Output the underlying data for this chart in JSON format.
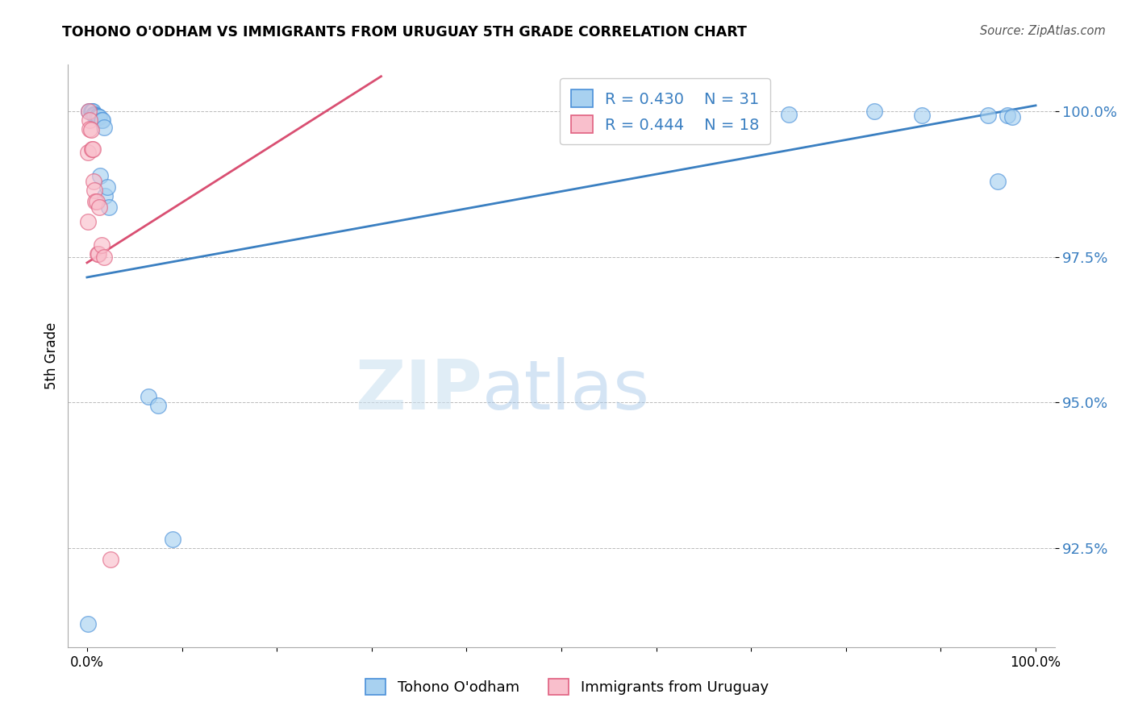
{
  "title": "TOHONO O'ODHAM VS IMMIGRANTS FROM URUGUAY 5TH GRADE CORRELATION CHART",
  "source": "Source: ZipAtlas.com",
  "ylabel": "5th Grade",
  "xlim": [
    -0.02,
    1.02
  ],
  "ylim": [
    0.908,
    1.008
  ],
  "yticks": [
    0.925,
    0.95,
    0.975,
    1.0
  ],
  "ytick_labels": [
    "92.5%",
    "95.0%",
    "97.5%",
    "100.0%"
  ],
  "xticks": [
    0.0,
    0.1,
    0.2,
    0.3,
    0.4,
    0.5,
    0.6,
    0.7,
    0.8,
    0.9,
    1.0
  ],
  "xtick_labels": [
    "0.0%",
    "",
    "",
    "",
    "",
    "",
    "",
    "",
    "",
    "",
    "100.0%"
  ],
  "blue_R": 0.43,
  "blue_N": 31,
  "pink_R": 0.444,
  "pink_N": 18,
  "blue_fill": "#a8d1f0",
  "pink_fill": "#f9bfcc",
  "blue_edge": "#4a90d9",
  "pink_edge": "#e06080",
  "blue_line": "#3a7fc1",
  "pink_line": "#d94f72",
  "blue_scatter_x": [
    0.002,
    0.004,
    0.005,
    0.006,
    0.007,
    0.008,
    0.009,
    0.01,
    0.011,
    0.012,
    0.013,
    0.014,
    0.015,
    0.016,
    0.018,
    0.019,
    0.021,
    0.023,
    0.065,
    0.075,
    0.09,
    0.63,
    0.69,
    0.74,
    0.83,
    0.88,
    0.95,
    0.97,
    0.975,
    0.96,
    0.001
  ],
  "blue_scatter_y": [
    1.0,
    1.0,
    1.0,
    1.0,
    0.9995,
    0.9995,
    0.9993,
    0.9992,
    0.9992,
    0.999,
    0.999,
    0.989,
    0.9985,
    0.9985,
    0.9972,
    0.9855,
    0.987,
    0.9835,
    0.951,
    0.9495,
    0.9265,
    0.9995,
    0.9995,
    0.9995,
    1.0,
    0.9993,
    0.9993,
    0.9993,
    0.999,
    0.988,
    0.912
  ],
  "pink_scatter_x": [
    0.001,
    0.002,
    0.003,
    0.003,
    0.004,
    0.005,
    0.006,
    0.007,
    0.008,
    0.009,
    0.01,
    0.011,
    0.012,
    0.013,
    0.015,
    0.018,
    0.025,
    0.001
  ],
  "pink_scatter_y": [
    0.993,
    1.0,
    0.9985,
    0.997,
    0.9968,
    0.9935,
    0.9935,
    0.988,
    0.9865,
    0.9845,
    0.9845,
    0.9755,
    0.9755,
    0.9835,
    0.977,
    0.975,
    0.923,
    0.981
  ],
  "blue_trend": [
    0.0,
    1.0,
    0.9715,
    1.001
  ],
  "pink_trend": [
    0.0,
    0.31,
    0.974,
    1.006
  ],
  "watermark_zip": "ZIP",
  "watermark_atlas": "atlas",
  "legend_label_blue": "Tohono O'odham",
  "legend_label_pink": "Immigrants from Uruguay"
}
